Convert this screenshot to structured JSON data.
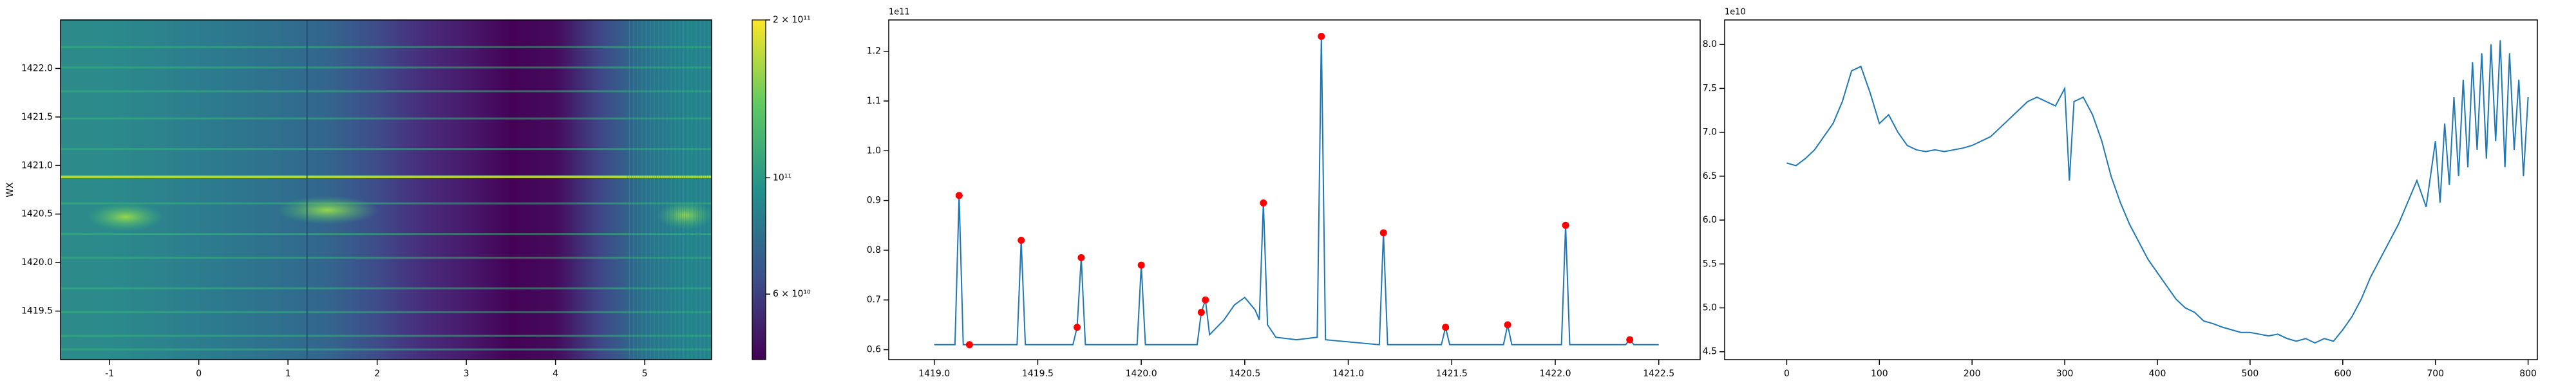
{
  "chart_data": [
    {
      "type": "heatmap",
      "ylabel": "WX",
      "xlim": [
        -1.55,
        5.75
      ],
      "xticks": [
        -1,
        0,
        1,
        2,
        3,
        4,
        5
      ],
      "ylim": [
        1419.0,
        1422.5
      ],
      "yticks": [
        1419.5,
        {
          "value": 1420.0,
          "label": "1420.0"
        },
        1420.5,
        {
          "value": 1421.0,
          "label": "1421.0"
        },
        1421.5,
        {
          "value": 1422.0,
          "label": "1422.0"
        }
      ],
      "colorbar": {
        "scale": "log",
        "clim": [
          45000000000,
          200000000000
        ],
        "ticks": [
          {
            "value": 200000000000,
            "label": "2 × 10¹¹"
          },
          {
            "value": 100000000000,
            "label": "10¹¹"
          },
          {
            "value": 60000000000,
            "label": "6 × 10¹⁰"
          }
        ]
      }
    },
    {
      "type": "line",
      "offset_text": "1e11",
      "xlim": [
        1418.78,
        1422.7
      ],
      "xticks": [
        {
          "value": 1419.0,
          "label": "1419.0"
        },
        1419.5,
        {
          "value": 1420.0,
          "label": "1420.0"
        },
        1420.5,
        {
          "value": 1421.0,
          "label": "1421.0"
        },
        1421.5,
        {
          "value": 1422.0,
          "label": "1422.0"
        },
        1422.5
      ],
      "ylim": [
        0.58,
        1.263
      ],
      "yticks": [
        0.6,
        0.7,
        0.8,
        0.9,
        {
          "value": 1.0,
          "label": "1.0"
        },
        1.1,
        1.2
      ],
      "series": [
        {
          "color": "#1f77b4",
          "x": [
            1419.0,
            1419.1,
            1419.12,
            1419.14,
            1419.17,
            1419.4,
            1419.42,
            1419.44,
            1419.67,
            1419.69,
            1419.71,
            1419.73,
            1419.98,
            1420.0,
            1420.02,
            1420.27,
            1420.29,
            1420.31,
            1420.33,
            1420.4,
            1420.45,
            1420.5,
            1420.55,
            1420.57,
            1420.59,
            1420.61,
            1420.65,
            1420.75,
            1420.85,
            1420.87,
            1420.89,
            1421.15,
            1421.17,
            1421.19,
            1421.45,
            1421.47,
            1421.49,
            1421.75,
            1421.77,
            1421.79,
            1422.03,
            1422.05,
            1422.07,
            1422.34,
            1422.36,
            1422.38,
            1422.5
          ],
          "values": [
            0.61,
            0.61,
            0.91,
            0.61,
            0.61,
            0.61,
            0.82,
            0.61,
            0.61,
            0.645,
            0.785,
            0.61,
            0.61,
            0.77,
            0.61,
            0.61,
            0.675,
            0.7,
            0.63,
            0.66,
            0.69,
            0.705,
            0.68,
            0.66,
            0.895,
            0.65,
            0.625,
            0.62,
            0.625,
            1.23,
            0.62,
            0.61,
            0.835,
            0.61,
            0.61,
            0.645,
            0.61,
            0.61,
            0.65,
            0.61,
            0.61,
            0.85,
            0.61,
            0.61,
            0.62,
            0.61,
            0.61
          ]
        },
        {
          "color": "red",
          "marker": "o",
          "x": [
            1419.12,
            1419.17,
            1419.42,
            1419.69,
            1419.71,
            1420.0,
            1420.29,
            1420.31,
            1420.59,
            1420.87,
            1421.17,
            1421.47,
            1421.77,
            1422.05,
            1422.36
          ],
          "values": [
            0.91,
            0.61,
            0.82,
            0.645,
            0.785,
            0.77,
            0.675,
            0.7,
            0.895,
            1.23,
            0.835,
            0.645,
            0.65,
            0.85,
            0.62
          ]
        }
      ]
    },
    {
      "type": "line",
      "offset_text": "1e10",
      "xlim": [
        -67,
        810
      ],
      "xticks": [
        0,
        100,
        200,
        300,
        400,
        500,
        600,
        700,
        800
      ],
      "ylim": [
        4.41,
        8.28
      ],
      "yticks": [
        4.5,
        {
          "value": 5.0,
          "label": "5.0"
        },
        5.5,
        {
          "value": 6.0,
          "label": "6.0"
        },
        6.5,
        {
          "value": 7.0,
          "label": "7.0"
        },
        7.5,
        {
          "value": 8.0,
          "label": "8.0"
        }
      ],
      "series": [
        {
          "color": "#1f77b4",
          "x": [
            0,
            10,
            20,
            30,
            40,
            50,
            60,
            70,
            80,
            90,
            100,
            110,
            120,
            130,
            140,
            150,
            160,
            170,
            180,
            190,
            200,
            210,
            220,
            230,
            240,
            250,
            260,
            270,
            280,
            290,
            300,
            305,
            310,
            320,
            330,
            340,
            350,
            360,
            370,
            380,
            390,
            400,
            410,
            420,
            430,
            440,
            450,
            460,
            470,
            480,
            490,
            500,
            510,
            520,
            530,
            540,
            550,
            560,
            570,
            580,
            590,
            600,
            610,
            620,
            630,
            640,
            650,
            660,
            670,
            680,
            690,
            700,
            705,
            710,
            715,
            720,
            725,
            730,
            735,
            740,
            745,
            750,
            755,
            760,
            765,
            770,
            775,
            780,
            785,
            790,
            795,
            800
          ],
          "values": [
            6.65,
            6.62,
            6.7,
            6.8,
            6.95,
            7.1,
            7.35,
            7.7,
            7.75,
            7.45,
            7.1,
            7.2,
            7.0,
            6.85,
            6.8,
            6.78,
            6.8,
            6.78,
            6.8,
            6.82,
            6.85,
            6.9,
            6.95,
            7.05,
            7.15,
            7.25,
            7.35,
            7.4,
            7.35,
            7.3,
            7.5,
            6.45,
            7.35,
            7.4,
            7.2,
            6.9,
            6.5,
            6.2,
            5.95,
            5.75,
            5.55,
            5.4,
            5.25,
            5.1,
            5.0,
            4.95,
            4.85,
            4.82,
            4.78,
            4.75,
            4.72,
            4.72,
            4.7,
            4.68,
            4.7,
            4.65,
            4.62,
            4.65,
            4.6,
            4.65,
            4.62,
            4.75,
            4.9,
            5.1,
            5.35,
            5.55,
            5.75,
            5.95,
            6.2,
            6.45,
            6.15,
            6.9,
            6.2,
            7.1,
            6.4,
            7.4,
            6.5,
            7.6,
            6.6,
            7.8,
            6.8,
            7.9,
            6.7,
            8.0,
            6.9,
            8.05,
            6.6,
            7.9,
            6.8,
            7.6,
            6.5,
            7.4
          ]
        }
      ]
    }
  ]
}
